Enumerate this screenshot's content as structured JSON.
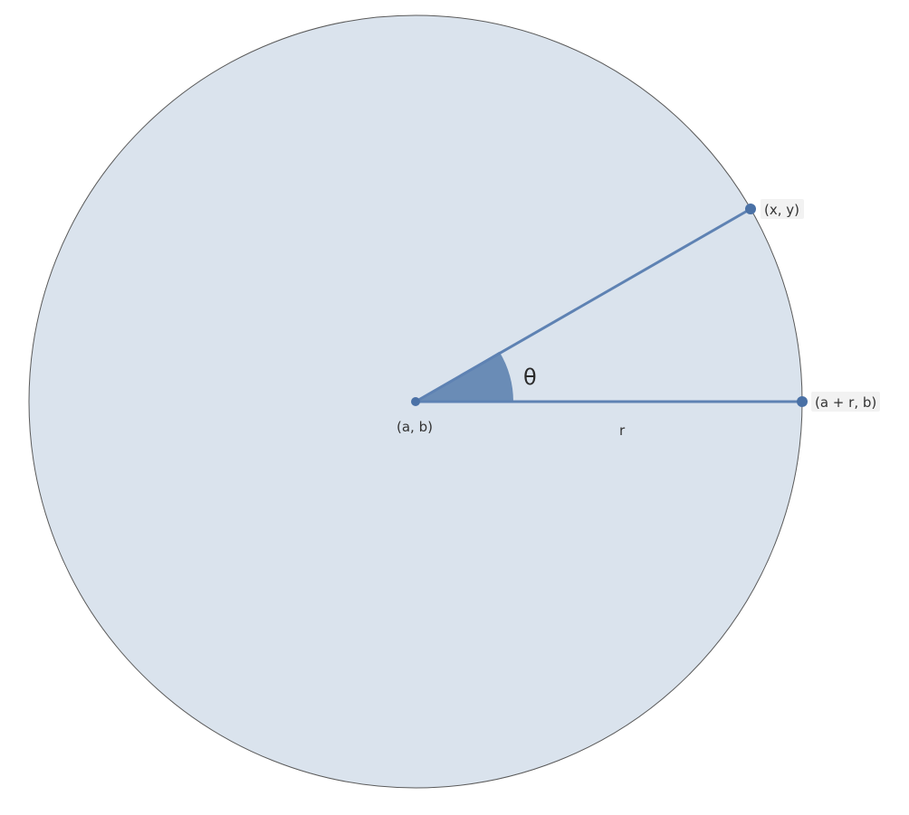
{
  "diagram": {
    "points": {
      "center_label": "(a, b)",
      "point_label": "(x, y)",
      "edge_label": "(a + r, b)"
    },
    "radius_label": "r",
    "angle_label": "θ"
  },
  "colors": {
    "circle_fill": "#dae3ed",
    "circle_stroke": "#5a5a5a",
    "line": "#5e82b3",
    "point": "#4a71a6",
    "angle_fill": "#6a8cb6"
  }
}
